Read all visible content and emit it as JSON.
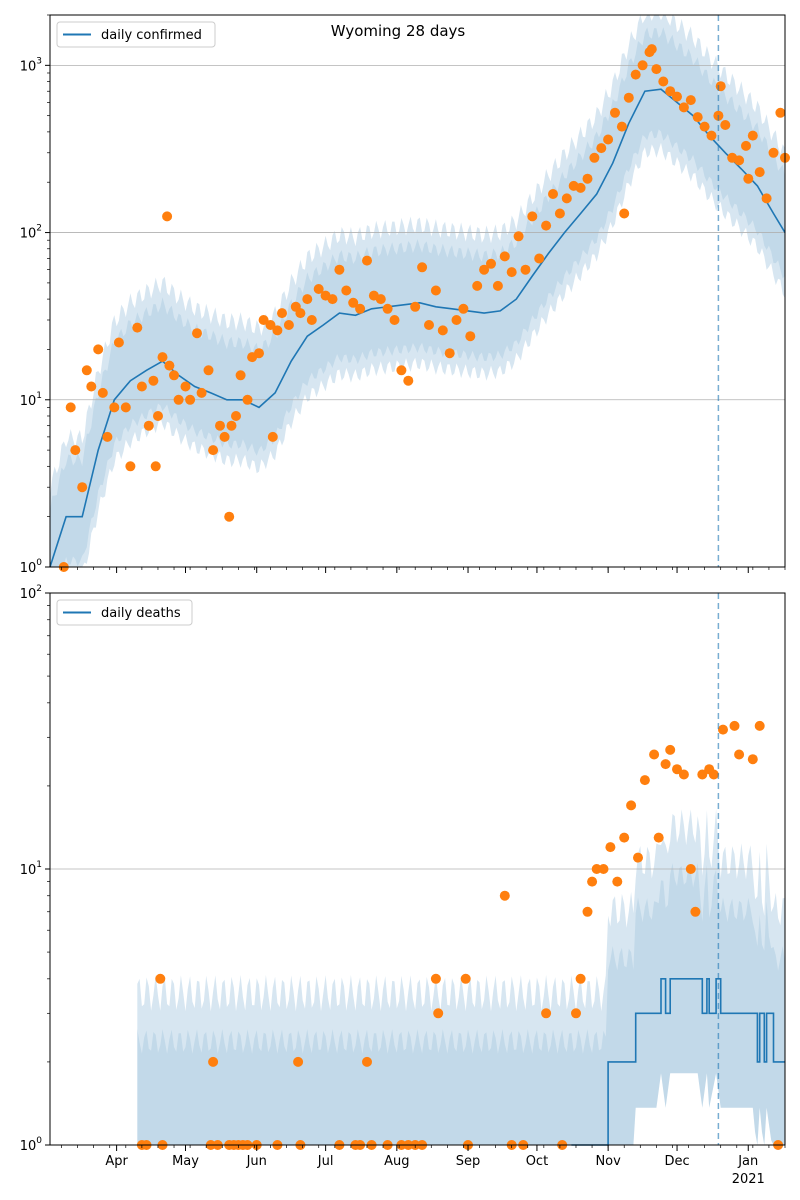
{
  "chart_data": [
    {
      "type": "line+scatter",
      "title": "Wyoming 28 days",
      "y_scale": "log",
      "ylim": [
        1,
        2000
      ],
      "xlim": [
        "2020-03-03",
        "2021-01-17"
      ],
      "y_ticks": [
        {
          "value": 1,
          "base": "10",
          "exp": "0"
        },
        {
          "value": 10,
          "base": "10",
          "exp": "1"
        },
        {
          "value": 100,
          "base": "10",
          "exp": "2"
        },
        {
          "value": 1000,
          "base": "10",
          "exp": "3"
        }
      ],
      "grid": "horizontal",
      "legend": {
        "placement": "top-left",
        "entries": [
          "daily confirmed"
        ]
      },
      "vline_date": "2020-12-19",
      "line_color": "#1f77b4",
      "marker_color": "#ff7f0e",
      "band_color": "#1f77b4",
      "series": [
        {
          "name": "daily confirmed",
          "kind": "line",
          "x": [
            "2020-03-03",
            "2020-03-10",
            "2020-03-17",
            "2020-03-24",
            "2020-03-31",
            "2020-04-07",
            "2020-04-14",
            "2020-04-21",
            "2020-04-28",
            "2020-05-05",
            "2020-05-12",
            "2020-05-19",
            "2020-05-26",
            "2020-06-02",
            "2020-06-09",
            "2020-06-16",
            "2020-06-23",
            "2020-06-30",
            "2020-07-07",
            "2020-07-14",
            "2020-07-21",
            "2020-07-28",
            "2020-08-04",
            "2020-08-11",
            "2020-08-18",
            "2020-08-25",
            "2020-09-01",
            "2020-09-08",
            "2020-09-15",
            "2020-09-22",
            "2020-09-29",
            "2020-10-06",
            "2020-10-13",
            "2020-10-20",
            "2020-10-27",
            "2020-11-03",
            "2020-11-10",
            "2020-11-17",
            "2020-11-24",
            "2020-12-01",
            "2020-12-08",
            "2020-12-15",
            "2020-12-22",
            "2020-12-29",
            "2021-01-05",
            "2021-01-12",
            "2021-01-17"
          ],
          "y": [
            1,
            2,
            2,
            5,
            10,
            13,
            15,
            17,
            14,
            12,
            11,
            10,
            10,
            9,
            11,
            17,
            24,
            28,
            33,
            32,
            35,
            36,
            37,
            38,
            36,
            35,
            34,
            33,
            34,
            40,
            55,
            75,
            100,
            130,
            170,
            260,
            450,
            700,
            720,
            600,
            500,
            380,
            300,
            240,
            190,
            130,
            100
          ]
        },
        {
          "name": "observed",
          "kind": "scatter",
          "x": [
            "2020-03-09",
            "2020-03-12",
            "2020-03-14",
            "2020-03-17",
            "2020-03-19",
            "2020-03-21",
            "2020-03-24",
            "2020-03-26",
            "2020-03-28",
            "2020-03-31",
            "2020-04-02",
            "2020-04-05",
            "2020-04-07",
            "2020-04-10",
            "2020-04-12",
            "2020-04-15",
            "2020-04-17",
            "2020-04-19",
            "2020-04-21",
            "2020-04-24",
            "2020-04-26",
            "2020-04-28",
            "2020-05-01",
            "2020-05-03",
            "2020-05-06",
            "2020-05-08",
            "2020-05-11",
            "2020-05-13",
            "2020-05-16",
            "2020-05-18",
            "2020-05-21",
            "2020-05-23",
            "2020-05-25",
            "2020-05-28",
            "2020-05-30",
            "2020-06-02",
            "2020-06-04",
            "2020-06-07",
            "2020-06-10",
            "2020-06-12",
            "2020-06-15",
            "2020-06-18",
            "2020-06-20",
            "2020-06-23",
            "2020-06-25",
            "2020-06-28",
            "2020-07-01",
            "2020-07-04",
            "2020-07-07",
            "2020-07-10",
            "2020-07-13",
            "2020-07-16",
            "2020-07-19",
            "2020-07-22",
            "2020-07-25",
            "2020-07-28",
            "2020-07-31",
            "2020-08-03",
            "2020-08-06",
            "2020-08-09",
            "2020-08-12",
            "2020-08-15",
            "2020-08-18",
            "2020-08-21",
            "2020-08-24",
            "2020-08-27",
            "2020-08-30",
            "2020-09-02",
            "2020-09-05",
            "2020-09-08",
            "2020-09-11",
            "2020-09-14",
            "2020-09-17",
            "2020-09-20",
            "2020-09-23",
            "2020-09-26",
            "2020-09-29",
            "2020-10-02",
            "2020-10-05",
            "2020-10-08",
            "2020-10-11",
            "2020-10-14",
            "2020-10-17",
            "2020-10-20",
            "2020-10-23",
            "2020-10-26",
            "2020-10-29",
            "2020-11-01",
            "2020-11-04",
            "2020-11-07",
            "2020-11-10",
            "2020-11-13",
            "2020-11-16",
            "2020-11-19",
            "2020-11-22",
            "2020-11-25",
            "2020-11-28",
            "2020-12-01",
            "2020-12-04",
            "2020-12-07",
            "2020-12-10",
            "2020-12-13",
            "2020-12-16",
            "2020-12-19",
            "2020-12-22",
            "2020-12-25",
            "2020-12-28",
            "2020-12-31",
            "2021-01-03",
            "2021-01-06",
            "2021-01-09",
            "2021-01-12",
            "2021-01-15",
            "2021-01-17",
            "2020-04-23",
            "2020-06-08",
            "2020-05-20",
            "2020-04-18",
            "2020-11-08",
            "2020-11-20",
            "2020-12-20",
            "2021-01-01"
          ],
          "y": [
            1,
            9,
            5,
            3,
            15,
            12,
            20,
            11,
            6,
            9,
            22,
            9,
            4,
            27,
            12,
            7,
            13,
            8,
            18,
            16,
            14,
            10,
            12,
            10,
            25,
            11,
            15,
            5,
            7,
            6,
            7,
            8,
            14,
            10,
            18,
            19,
            30,
            28,
            26,
            33,
            28,
            36,
            33,
            40,
            30,
            46,
            42,
            40,
            60,
            45,
            38,
            35,
            68,
            42,
            40,
            35,
            30,
            15,
            13,
            36,
            62,
            28,
            45,
            26,
            19,
            30,
            35,
            24,
            48,
            60,
            65,
            48,
            72,
            58,
            95,
            60,
            125,
            70,
            110,
            170,
            130,
            160,
            190,
            185,
            210,
            280,
            320,
            360,
            520,
            430,
            640,
            880,
            1000,
            1200,
            950,
            800,
            700,
            650,
            560,
            620,
            490,
            430,
            380,
            500,
            440,
            280,
            270,
            330,
            380,
            230,
            160,
            300,
            520,
            280,
            125,
            6,
            2,
            4,
            130,
            1250,
            750,
            210
          ]
        }
      ]
    },
    {
      "type": "line+scatter",
      "y_scale": "log",
      "ylim": [
        1,
        100
      ],
      "xlim": [
        "2020-03-03",
        "2021-01-17"
      ],
      "y_ticks": [
        {
          "value": 1,
          "base": "10",
          "exp": "0"
        },
        {
          "value": 10,
          "base": "10",
          "exp": "1"
        },
        {
          "value": 100,
          "base": "10",
          "exp": "2"
        }
      ],
      "x_tick_labels": [
        "Apr",
        "May",
        "Jun",
        "Jul",
        "Aug",
        "Sep",
        "Oct",
        "Nov",
        "Dec",
        "Jan"
      ],
      "x_tick_dates": [
        "2020-04-01",
        "2020-05-01",
        "2020-06-01",
        "2020-07-01",
        "2020-08-01",
        "2020-09-01",
        "2020-10-01",
        "2020-11-01",
        "2020-12-01",
        "2021-01-01"
      ],
      "x_year_label": "2021",
      "grid": "horizontal",
      "legend": {
        "placement": "top-left",
        "entries": [
          "daily deaths"
        ]
      },
      "vline_date": "2020-12-19",
      "line_color": "#1f77b4",
      "marker_color": "#ff7f0e",
      "band_color": "#1f77b4",
      "series": [
        {
          "name": "daily deaths",
          "kind": "line",
          "x": [
            "2020-10-16",
            "2020-10-31",
            "2020-11-01",
            "2020-11-12",
            "2020-11-13",
            "2020-11-22",
            "2020-11-24",
            "2020-11-26",
            "2020-11-28",
            "2020-12-01",
            "2020-12-06",
            "2020-12-10",
            "2020-12-12",
            "2020-12-14",
            "2020-12-15",
            "2020-12-18",
            "2020-12-20",
            "2021-01-03",
            "2021-01-05",
            "2021-01-06",
            "2021-01-08",
            "2021-01-09",
            "2021-01-12",
            "2021-01-17"
          ],
          "y": [
            1,
            1,
            2,
            2,
            3,
            3,
            4,
            3,
            4,
            4,
            4,
            4,
            3,
            4,
            3,
            4,
            3,
            3,
            2,
            3,
            2,
            3,
            2,
            2
          ]
        },
        {
          "name": "observed",
          "kind": "scatter",
          "x": [
            "2020-04-12",
            "2020-04-14",
            "2020-04-20",
            "2020-04-21",
            "2020-05-12",
            "2020-05-13",
            "2020-05-15",
            "2020-05-20",
            "2020-05-22",
            "2020-05-24",
            "2020-05-26",
            "2020-05-28",
            "2020-06-01",
            "2020-06-10",
            "2020-06-19",
            "2020-06-20",
            "2020-07-07",
            "2020-07-14",
            "2020-07-16",
            "2020-07-19",
            "2020-07-21",
            "2020-07-28",
            "2020-08-03",
            "2020-08-06",
            "2020-08-09",
            "2020-08-12",
            "2020-08-18",
            "2020-08-19",
            "2020-08-31",
            "2020-09-01",
            "2020-09-17",
            "2020-09-20",
            "2020-09-25",
            "2020-10-05",
            "2020-10-12",
            "2020-10-18",
            "2020-10-20",
            "2020-10-23",
            "2020-10-25",
            "2020-10-27",
            "2020-10-30",
            "2020-11-02",
            "2020-11-05",
            "2020-11-08",
            "2020-11-11",
            "2020-11-14",
            "2020-11-17",
            "2020-11-21",
            "2020-11-23",
            "2020-11-26",
            "2020-11-28",
            "2020-12-01",
            "2020-12-04",
            "2020-12-07",
            "2020-12-09",
            "2020-12-12",
            "2020-12-15",
            "2020-12-17",
            "2020-12-21",
            "2020-12-26",
            "2020-12-28",
            "2021-01-03",
            "2021-01-06",
            "2021-01-14"
          ],
          "y": [
            1,
            1,
            4,
            1,
            1,
            2,
            1,
            1,
            1,
            1,
            1,
            1,
            1,
            1,
            2,
            1,
            1,
            1,
            1,
            2,
            1,
            1,
            1,
            1,
            1,
            1,
            4,
            3,
            4,
            1,
            8,
            1,
            1,
            3,
            1,
            3,
            4,
            7,
            9,
            10,
            10,
            12,
            9,
            13,
            17,
            11,
            21,
            26,
            13,
            24,
            27,
            23,
            22,
            10,
            7,
            22,
            23,
            22,
            32,
            33,
            26,
            25,
            33,
            1
          ]
        }
      ]
    }
  ]
}
